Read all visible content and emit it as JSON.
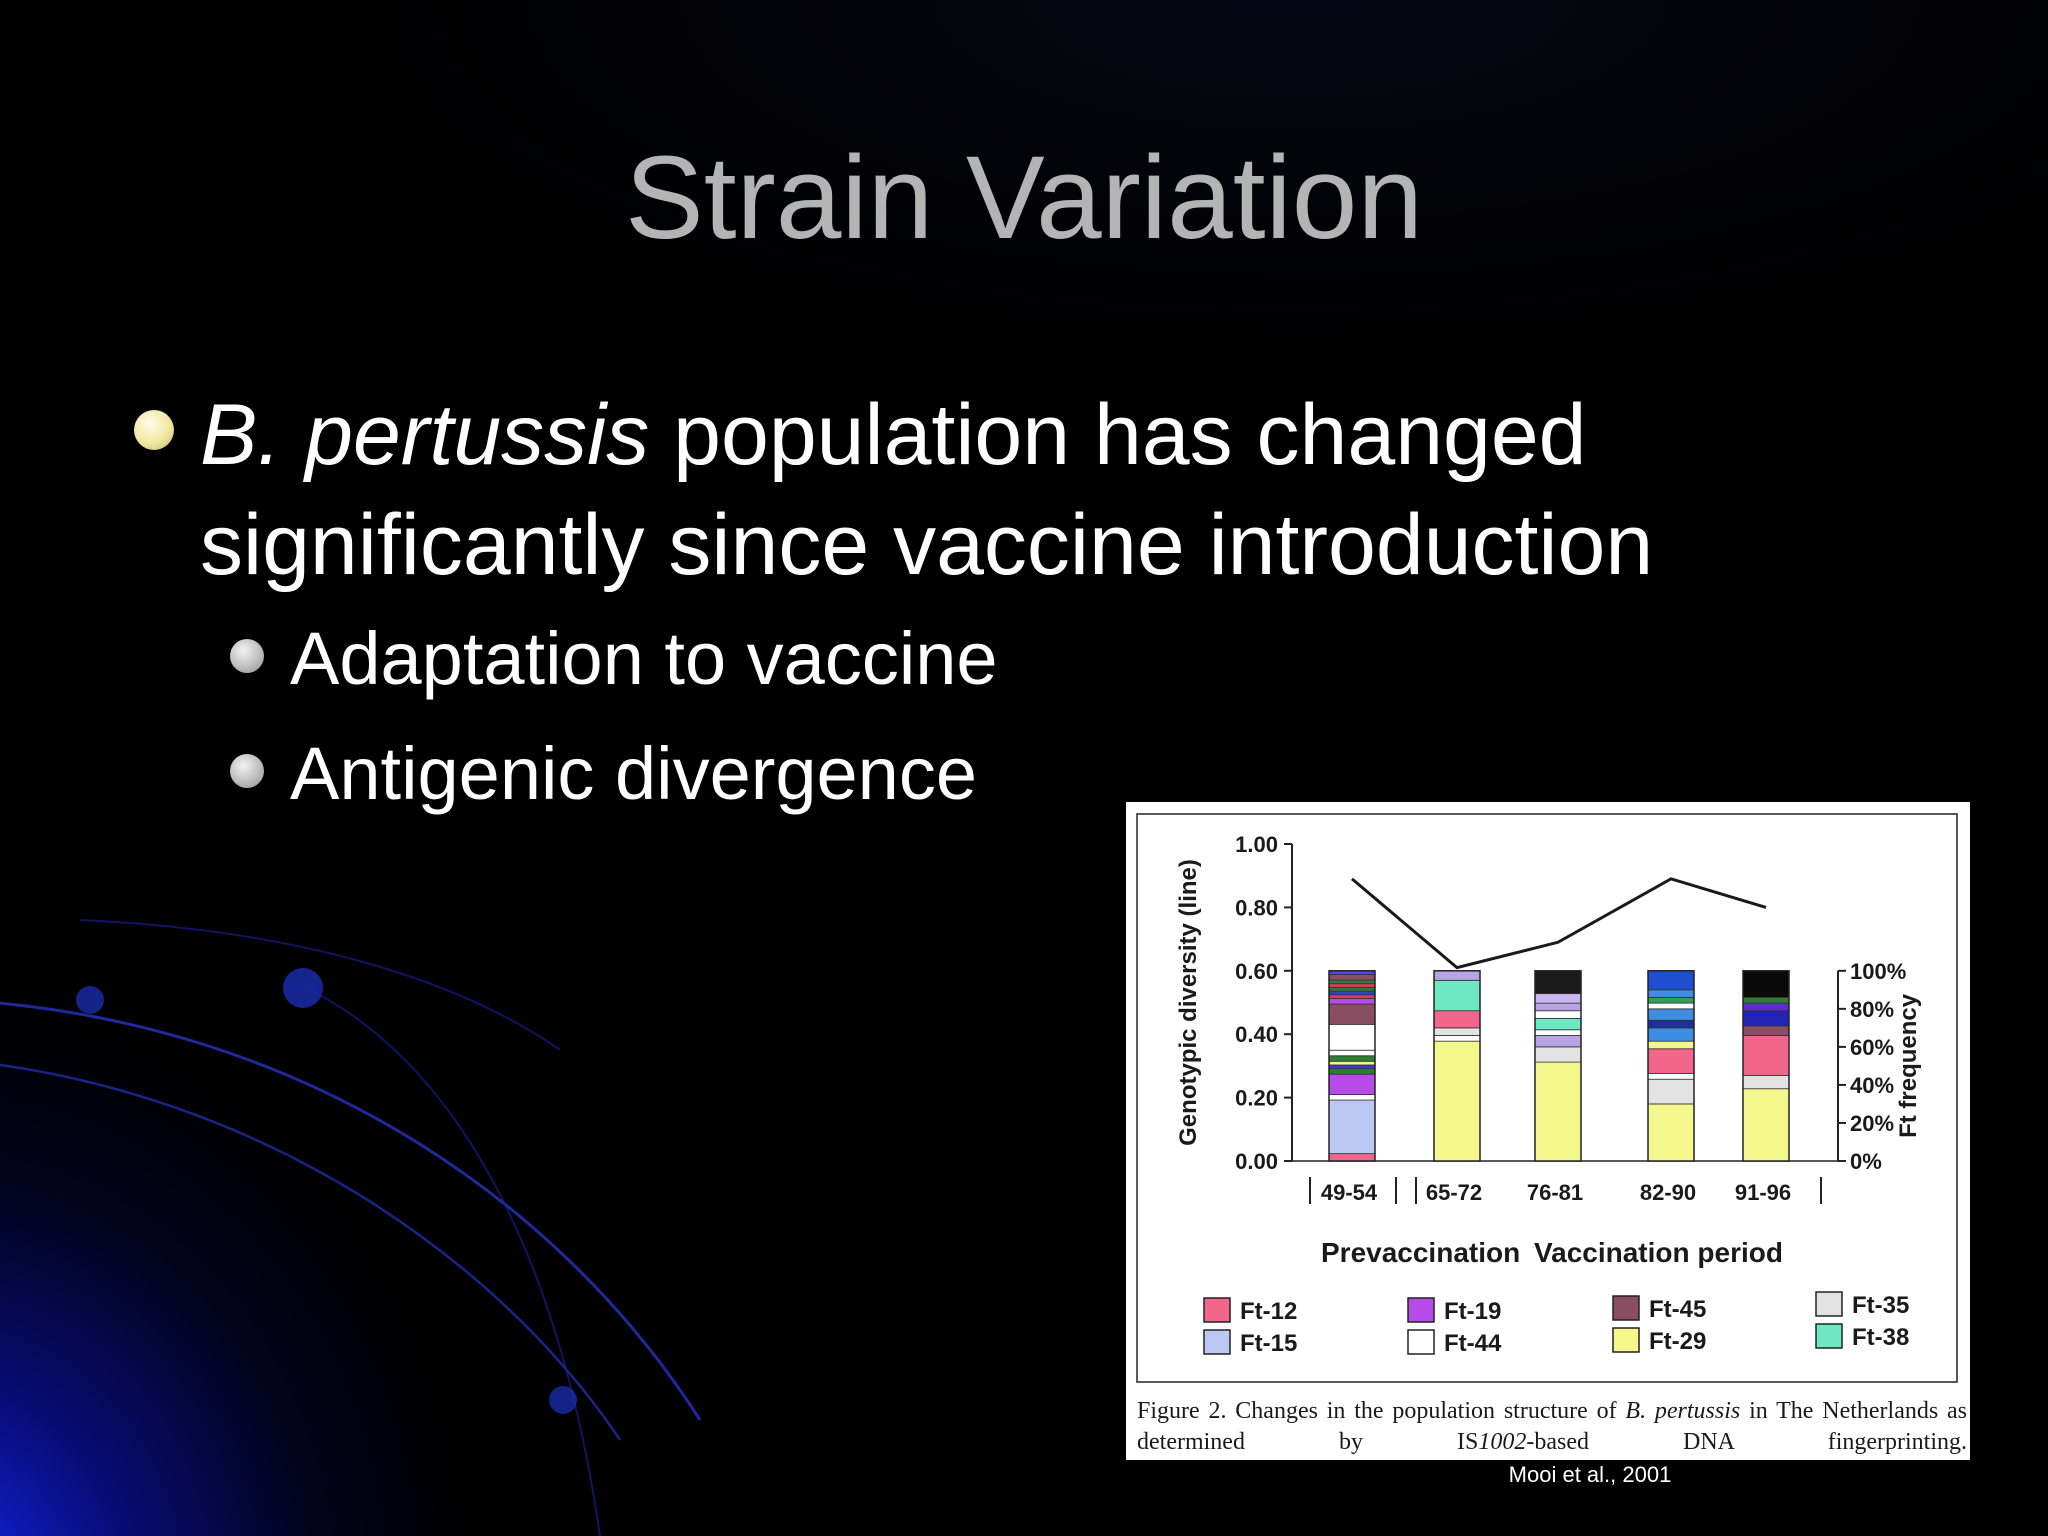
{
  "slide": {
    "title": "Strain Variation",
    "bullet_italic": "B. pertussis",
    "bullet_text_1": " population has changed",
    "bullet_text_2": "significantly since vaccine introduction",
    "sub_bullets": [
      "Adaptation to vaccine",
      "Antigenic divergence"
    ],
    "credit": "Mooi et al., 2001"
  },
  "figure": {
    "caption_prefix": "Figure 2. Changes in the population structure of ",
    "caption_italic_1": "B. pertussis",
    "caption_mid": " in The Netherlands as determined by IS",
    "caption_italic_2": "1002",
    "caption_suffix": "-based DNA fingerprinting."
  },
  "chart_data": {
    "type": "bar",
    "categories": [
      "49-54",
      "65-72",
      "76-81",
      "82-90",
      "91-96"
    ],
    "ylabel": "Genotypic diversity (line)",
    "y2label": "Ft frequency",
    "ylim": [
      0,
      1.0
    ],
    "yticks": [
      "0.00",
      "0.20",
      "0.40",
      "0.60",
      "0.80",
      "1.00"
    ],
    "y2ticks": [
      "0%",
      "20%",
      "40%",
      "60%",
      "80%",
      "100%"
    ],
    "period_labels": [
      "Prevaccination",
      "Vaccination period"
    ],
    "line": {
      "name": "Genotypic diversity",
      "values": [
        0.89,
        0.61,
        0.69,
        0.89,
        0.8
      ]
    },
    "legend": [
      {
        "name": "Ft-12",
        "color": "#F2668C"
      },
      {
        "name": "Ft-15",
        "color": "#BCC8F2"
      },
      {
        "name": "Ft-19",
        "color": "#B64BE8"
      },
      {
        "name": "Ft-44",
        "color": "#FFFFFF"
      },
      {
        "name": "Ft-45",
        "color": "#8A4E63"
      },
      {
        "name": "Ft-29",
        "color": "#F4F78C"
      },
      {
        "name": "Ft-35",
        "color": "#E3E3E3"
      },
      {
        "name": "Ft-38",
        "color": "#6EE8C0"
      }
    ],
    "stacks": [
      [
        {
          "value": 4,
          "color": "#F2668C"
        },
        {
          "value": 29,
          "color": "#BCC8F2"
        },
        {
          "value": 3,
          "color": "#FFFFFF"
        },
        {
          "value": 11,
          "color": "#B64BE8"
        },
        {
          "value": 3,
          "color": "#2E7D32"
        },
        {
          "value": 2,
          "color": "#3B3BCF"
        },
        {
          "value": 2,
          "color": "#F4F78C"
        },
        {
          "value": 3,
          "color": "#2E7D32"
        },
        {
          "value": 3,
          "color": "#FFFFFF"
        },
        {
          "value": 14,
          "color": "#FFFFFF"
        },
        {
          "value": 11,
          "color": "#8A4E63"
        },
        {
          "value": 3,
          "color": "#B64BE8"
        },
        {
          "value": 2,
          "color": "#E03A5A"
        },
        {
          "value": 2,
          "color": "#3B3BCF"
        },
        {
          "value": 2,
          "color": "#2E7D32"
        },
        {
          "value": 2,
          "color": "#E03A5A"
        },
        {
          "value": 2,
          "color": "#2E7D32"
        },
        {
          "value": 3,
          "color": "#8A4E63"
        },
        {
          "value": 2,
          "color": "#4A4ADF"
        }
      ],
      [
        {
          "value": 63,
          "color": "#F4F78C"
        },
        {
          "value": 3,
          "color": "#FFFFFF"
        },
        {
          "value": 4,
          "color": "#E3E3E3"
        },
        {
          "value": 9,
          "color": "#F2668C"
        },
        {
          "value": 16,
          "color": "#6EE8C0"
        },
        {
          "value": 5,
          "color": "#B9A3E3"
        }
      ],
      [
        {
          "value": 52,
          "color": "#F4F78C"
        },
        {
          "value": 8,
          "color": "#E3E3E3"
        },
        {
          "value": 6,
          "color": "#B9A3E3"
        },
        {
          "value": 3,
          "color": "#FFFFFF"
        },
        {
          "value": 6,
          "color": "#6EE8C0"
        },
        {
          "value": 4,
          "color": "#FFFFFF"
        },
        {
          "value": 4,
          "color": "#B9A3E3"
        },
        {
          "value": 5,
          "color": "#C9B6EE"
        },
        {
          "value": 12,
          "color": "#1A1A1A"
        }
      ],
      [
        {
          "value": 30,
          "color": "#F4F78C"
        },
        {
          "value": 13,
          "color": "#E3E3E3"
        },
        {
          "value": 3,
          "color": "#FFFFFF"
        },
        {
          "value": 13,
          "color": "#F2668C"
        },
        {
          "value": 4,
          "color": "#F4F78C"
        },
        {
          "value": 7,
          "color": "#3C8FE0"
        },
        {
          "value": 4,
          "color": "#1E2E9A"
        },
        {
          "value": 6,
          "color": "#3C8FE0"
        },
        {
          "value": 3,
          "color": "#FFFFFF"
        },
        {
          "value": 3,
          "color": "#2EA05A"
        },
        {
          "value": 4,
          "color": "#3C8FE0"
        },
        {
          "value": 10,
          "color": "#1E4FD0"
        }
      ],
      [
        {
          "value": 38,
          "color": "#F4F78C"
        },
        {
          "value": 7,
          "color": "#E3E3E3"
        },
        {
          "value": 21,
          "color": "#F2668C"
        },
        {
          "value": 5,
          "color": "#8A4E63"
        },
        {
          "value": 8,
          "color": "#2323B4"
        },
        {
          "value": 4,
          "color": "#5A2DCF"
        },
        {
          "value": 3,
          "color": "#2E7D32"
        },
        {
          "value": 14,
          "color": "#0A0A0A"
        }
      ]
    ]
  }
}
